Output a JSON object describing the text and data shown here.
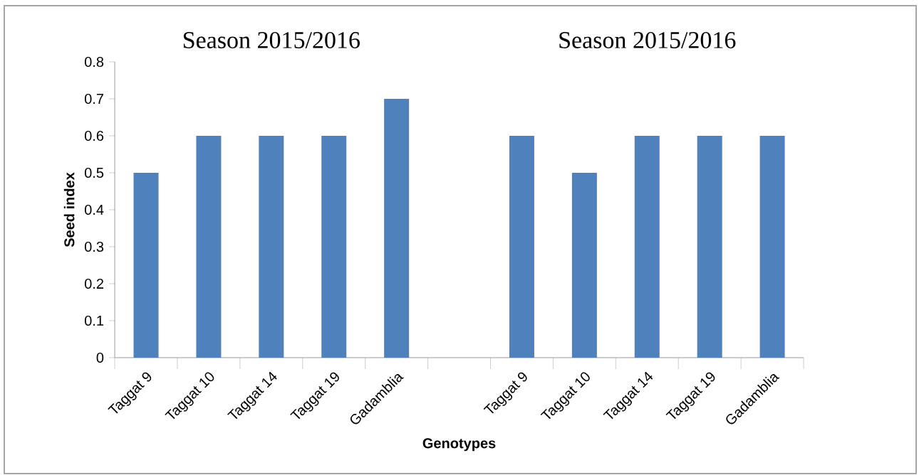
{
  "chart_data": {
    "type": "bar",
    "annotations": [
      "Season 2015/2016",
      "Season 2015/2016"
    ],
    "xlabel": "Genotypes",
    "ylabel": "Seed index",
    "categories": [
      "Taggat 9",
      "Taggat 10",
      "Taggat 14",
      "Taggat 19",
      "Gadamblia",
      null,
      "Taggat 9",
      "Taggat 10",
      "Taggat 14",
      "Taggat 19",
      "Gadamblia"
    ],
    "values": [
      0.5,
      0.6,
      0.6,
      0.6,
      0.7,
      null,
      0.6,
      0.5,
      0.6,
      0.6,
      0.6
    ],
    "color": "#4f81bd",
    "ylim": [
      0,
      0.8
    ],
    "yticks": [
      0,
      0.1,
      0.2,
      0.3,
      0.4,
      0.5,
      0.6,
      0.7,
      0.8
    ]
  }
}
